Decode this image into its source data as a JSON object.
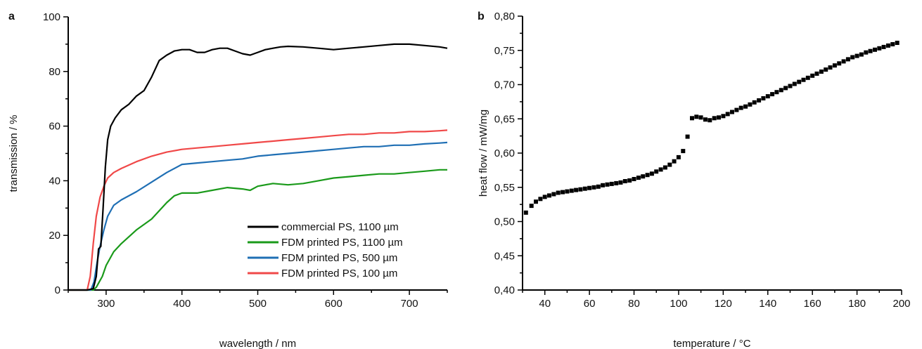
{
  "chart_data": [
    {
      "panel_label": "a",
      "type": "line",
      "title": "",
      "xlabel": "wavelength / nm",
      "ylabel": "transmission / %",
      "xlim": [
        250,
        750
      ],
      "ylim": [
        0,
        100
      ],
      "xticks": [
        300,
        400,
        500,
        600,
        700
      ],
      "yticks": [
        0,
        20,
        40,
        60,
        80,
        100
      ],
      "xtick_labels": [
        "300",
        "400",
        "500",
        "600",
        "700"
      ],
      "ytick_labels": [
        "0",
        "20",
        "40",
        "60",
        "80",
        "100"
      ],
      "grid": false,
      "legend_position": "bottom-right",
      "series": [
        {
          "name": "commercial PS, 1100 µm",
          "color": "#000000",
          "points": [
            [
              250,
              0
            ],
            [
              275,
              0
            ],
            [
              283,
              0.5
            ],
            [
              287,
              5
            ],
            [
              290,
              15
            ],
            [
              293,
              16
            ],
            [
              296,
              30
            ],
            [
              299,
              45
            ],
            [
              302,
              55
            ],
            [
              306,
              60
            ],
            [
              312,
              63
            ],
            [
              320,
              66
            ],
            [
              330,
              68
            ],
            [
              340,
              71
            ],
            [
              350,
              73
            ],
            [
              360,
              78
            ],
            [
              370,
              84
            ],
            [
              380,
              86
            ],
            [
              390,
              87.5
            ],
            [
              400,
              88
            ],
            [
              410,
              88
            ],
            [
              420,
              87
            ],
            [
              430,
              87
            ],
            [
              440,
              88
            ],
            [
              450,
              88.5
            ],
            [
              460,
              88.5
            ],
            [
              470,
              87.5
            ],
            [
              480,
              86.5
            ],
            [
              490,
              86
            ],
            [
              500,
              87
            ],
            [
              510,
              88
            ],
            [
              520,
              88.5
            ],
            [
              530,
              89
            ],
            [
              540,
              89.2
            ],
            [
              560,
              89
            ],
            [
              580,
              88.5
            ],
            [
              600,
              88
            ],
            [
              620,
              88.5
            ],
            [
              640,
              89
            ],
            [
              660,
              89.5
            ],
            [
              680,
              90
            ],
            [
              700,
              90
            ],
            [
              720,
              89.5
            ],
            [
              740,
              89
            ],
            [
              750,
              88.5
            ]
          ]
        },
        {
          "name": "FDM printed PS, 1100 µm",
          "color": "#1a9a1a",
          "points": [
            [
              250,
              0
            ],
            [
              283,
              0
            ],
            [
              287,
              1
            ],
            [
              291,
              3
            ],
            [
              295,
              5
            ],
            [
              300,
              9
            ],
            [
              310,
              14
            ],
            [
              320,
              17
            ],
            [
              340,
              22
            ],
            [
              360,
              26
            ],
            [
              380,
              32
            ],
            [
              390,
              34.5
            ],
            [
              400,
              35.5
            ],
            [
              420,
              35.5
            ],
            [
              440,
              36.5
            ],
            [
              460,
              37.5
            ],
            [
              480,
              37
            ],
            [
              490,
              36.5
            ],
            [
              500,
              38
            ],
            [
              520,
              39
            ],
            [
              540,
              38.5
            ],
            [
              560,
              39
            ],
            [
              580,
              40
            ],
            [
              600,
              41
            ],
            [
              620,
              41.5
            ],
            [
              640,
              42
            ],
            [
              660,
              42.5
            ],
            [
              680,
              42.5
            ],
            [
              700,
              43
            ],
            [
              720,
              43.5
            ],
            [
              740,
              44
            ],
            [
              750,
              44
            ]
          ]
        },
        {
          "name": "FDM printed PS, 500 µm",
          "color": "#1f6fb4",
          "points": [
            [
              250,
              0
            ],
            [
              280,
              0
            ],
            [
              284,
              3
            ],
            [
              288,
              10
            ],
            [
              292,
              16
            ],
            [
              297,
              22
            ],
            [
              302,
              27
            ],
            [
              310,
              31
            ],
            [
              320,
              33
            ],
            [
              340,
              36
            ],
            [
              360,
              39.5
            ],
            [
              380,
              43
            ],
            [
              400,
              46
            ],
            [
              420,
              46.5
            ],
            [
              440,
              47
            ],
            [
              460,
              47.5
            ],
            [
              480,
              48
            ],
            [
              500,
              49
            ],
            [
              520,
              49.5
            ],
            [
              540,
              50
            ],
            [
              560,
              50.5
            ],
            [
              580,
              51
            ],
            [
              600,
              51.5
            ],
            [
              620,
              52
            ],
            [
              640,
              52.5
            ],
            [
              660,
              52.5
            ],
            [
              680,
              53
            ],
            [
              700,
              53
            ],
            [
              720,
              53.5
            ],
            [
              740,
              53.8
            ],
            [
              750,
              54
            ]
          ]
        },
        {
          "name": "FDM printed PS, 100 µm",
          "color": "#f04848",
          "points": [
            [
              250,
              0
            ],
            [
              275,
              0
            ],
            [
              279,
              5
            ],
            [
              283,
              17
            ],
            [
              287,
              27
            ],
            [
              292,
              34
            ],
            [
              297,
              38
            ],
            [
              302,
              41
            ],
            [
              310,
              43
            ],
            [
              320,
              44.5
            ],
            [
              340,
              47
            ],
            [
              360,
              49
            ],
            [
              380,
              50.5
            ],
            [
              400,
              51.5
            ],
            [
              420,
              52
            ],
            [
              440,
              52.5
            ],
            [
              460,
              53
            ],
            [
              480,
              53.5
            ],
            [
              500,
              54
            ],
            [
              520,
              54.5
            ],
            [
              540,
              55
            ],
            [
              560,
              55.5
            ],
            [
              580,
              56
            ],
            [
              600,
              56.5
            ],
            [
              620,
              57
            ],
            [
              640,
              57
            ],
            [
              660,
              57.5
            ],
            [
              680,
              57.5
            ],
            [
              700,
              58
            ],
            [
              720,
              58
            ],
            [
              740,
              58.3
            ],
            [
              750,
              58.5
            ]
          ]
        }
      ]
    },
    {
      "panel_label": "b",
      "type": "scatter",
      "title": "",
      "xlabel": "temperature / °C",
      "ylabel": "heat flow / mW/mg",
      "xlim": [
        30,
        200
      ],
      "ylim": [
        0.4,
        0.8
      ],
      "xticks": [
        40,
        60,
        80,
        100,
        120,
        140,
        160,
        180,
        200
      ],
      "yticks": [
        0.4,
        0.45,
        0.5,
        0.55,
        0.6,
        0.65,
        0.7,
        0.75,
        0.8
      ],
      "xtick_labels": [
        "40",
        "60",
        "80",
        "100",
        "120",
        "140",
        "160",
        "180",
        "200"
      ],
      "ytick_labels": [
        "0,40",
        "0,45",
        "0,50",
        "0,55",
        "0,60",
        "0,65",
        "0,70",
        "0,75",
        "0,80"
      ],
      "grid": false,
      "series": [
        {
          "color": "#000000",
          "points": [
            [
              31.5,
              0.513
            ],
            [
              34,
              0.523
            ],
            [
              36,
              0.529
            ],
            [
              38,
              0.533
            ],
            [
              40,
              0.536
            ],
            [
              42,
              0.538
            ],
            [
              44,
              0.54
            ],
            [
              46,
              0.542
            ],
            [
              48,
              0.543
            ],
            [
              50,
              0.544
            ],
            [
              52,
              0.545
            ],
            [
              54,
              0.546
            ],
            [
              56,
              0.547
            ],
            [
              58,
              0.548
            ],
            [
              60,
              0.549
            ],
            [
              62,
              0.55
            ],
            [
              64,
              0.551
            ],
            [
              66,
              0.553
            ],
            [
              68,
              0.554
            ],
            [
              70,
              0.555
            ],
            [
              72,
              0.556
            ],
            [
              74,
              0.557
            ],
            [
              76,
              0.559
            ],
            [
              78,
              0.56
            ],
            [
              80,
              0.562
            ],
            [
              82,
              0.564
            ],
            [
              84,
              0.566
            ],
            [
              86,
              0.568
            ],
            [
              88,
              0.57
            ],
            [
              90,
              0.573
            ],
            [
              92,
              0.576
            ],
            [
              94,
              0.579
            ],
            [
              96,
              0.583
            ],
            [
              98,
              0.588
            ],
            [
              100,
              0.594
            ],
            [
              102,
              0.603
            ],
            [
              104,
              0.624
            ],
            [
              106,
              0.651
            ],
            [
              108,
              0.653
            ],
            [
              110,
              0.652
            ],
            [
              112,
              0.649
            ],
            [
              114,
              0.648
            ],
            [
              116,
              0.651
            ],
            [
              118,
              0.652
            ],
            [
              120,
              0.654
            ],
            [
              122,
              0.657
            ],
            [
              124,
              0.66
            ],
            [
              126,
              0.663
            ],
            [
              128,
              0.666
            ],
            [
              130,
              0.668
            ],
            [
              132,
              0.671
            ],
            [
              134,
              0.674
            ],
            [
              136,
              0.677
            ],
            [
              138,
              0.68
            ],
            [
              140,
              0.683
            ],
            [
              142,
              0.686
            ],
            [
              144,
              0.689
            ],
            [
              146,
              0.692
            ],
            [
              148,
              0.695
            ],
            [
              150,
              0.698
            ],
            [
              152,
              0.701
            ],
            [
              154,
              0.704
            ],
            [
              156,
              0.707
            ],
            [
              158,
              0.71
            ],
            [
              160,
              0.713
            ],
            [
              162,
              0.716
            ],
            [
              164,
              0.719
            ],
            [
              166,
              0.722
            ],
            [
              168,
              0.725
            ],
            [
              170,
              0.728
            ],
            [
              172,
              0.731
            ],
            [
              174,
              0.734
            ],
            [
              176,
              0.737
            ],
            [
              178,
              0.74
            ],
            [
              180,
              0.742
            ],
            [
              182,
              0.744
            ],
            [
              184,
              0.747
            ],
            [
              186,
              0.749
            ],
            [
              188,
              0.751
            ],
            [
              190,
              0.753
            ],
            [
              192,
              0.755
            ],
            [
              194,
              0.757
            ],
            [
              196,
              0.759
            ],
            [
              198,
              0.761
            ]
          ]
        }
      ]
    }
  ]
}
